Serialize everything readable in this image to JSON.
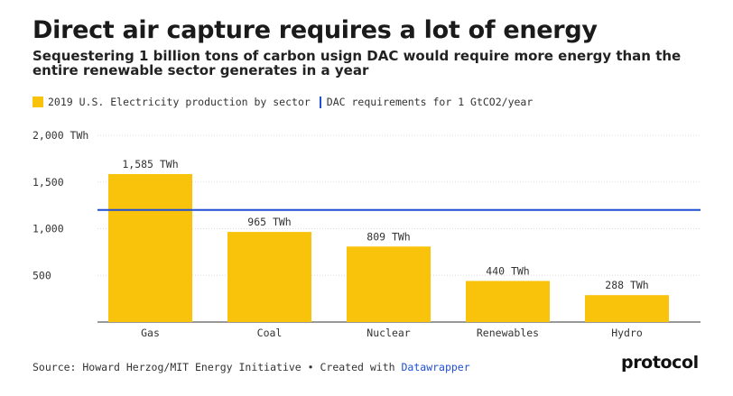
{
  "title": "Direct air capture requires a lot of energy",
  "subtitle": "Sequestering 1 billion tons of carbon usign DAC would require more energy than the entire renewable sector generates in a year",
  "legend": {
    "bars_label": "2019 U.S. Electricity production by sector",
    "line_label": "DAC requirements for 1 GtCO2/year"
  },
  "colors": {
    "bar": "#f9c20b",
    "reference_line": "#1f4fd6",
    "grid": "#dddddd"
  },
  "chart_data": {
    "type": "bar",
    "categories": [
      "Gas",
      "Coal",
      "Nuclear",
      "Renewables",
      "Hydro"
    ],
    "values": [
      1585,
      965,
      809,
      440,
      288
    ],
    "data_labels": [
      "1,585 TWh",
      "965 TWh",
      "809 TWh",
      "440 TWh",
      "288 TWh"
    ],
    "ylim": [
      0,
      2000
    ],
    "yticks": [
      500,
      1000,
      1500,
      2000
    ],
    "ytick_labels": [
      "500",
      "1,000",
      "1,500",
      "2,000 TWh"
    ],
    "reference_line": {
      "value": 1200
    },
    "grid": true,
    "legend_position": "top-left"
  },
  "footer": {
    "source_text": "Source: Howard Herzog/MIT Energy Initiative • Created with ",
    "link_text": "Datawrapper"
  },
  "logo_text": "protocol"
}
